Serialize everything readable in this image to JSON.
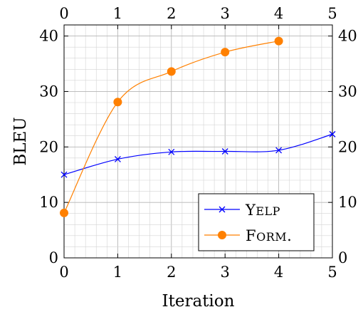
{
  "chart_data": {
    "type": "line",
    "title": "",
    "xlabel": "Iteration",
    "ylabel": "BLEU",
    "xlim": [
      0,
      5
    ],
    "ylim": [
      0,
      42
    ],
    "xticks": [
      0,
      1,
      2,
      3,
      4,
      5
    ],
    "yticks": [
      0,
      10,
      20,
      30,
      40
    ],
    "grid": true,
    "minor_grid": true,
    "mirrored_axes": true,
    "legend_position": "bottom-right",
    "series": [
      {
        "name": "Yelp",
        "color": "#0000ff",
        "marker": "x",
        "smooth": true,
        "x": [
          0,
          1,
          2,
          3,
          4,
          5
        ],
        "y": [
          15.0,
          17.8,
          19.1,
          19.2,
          19.4,
          22.3
        ]
      },
      {
        "name": "Form.",
        "color": "#ff8000",
        "marker": "circle",
        "smooth": true,
        "x": [
          0,
          1,
          2,
          3,
          4
        ],
        "y": [
          8.1,
          28.1,
          33.6,
          37.1,
          39.1
        ]
      }
    ]
  }
}
